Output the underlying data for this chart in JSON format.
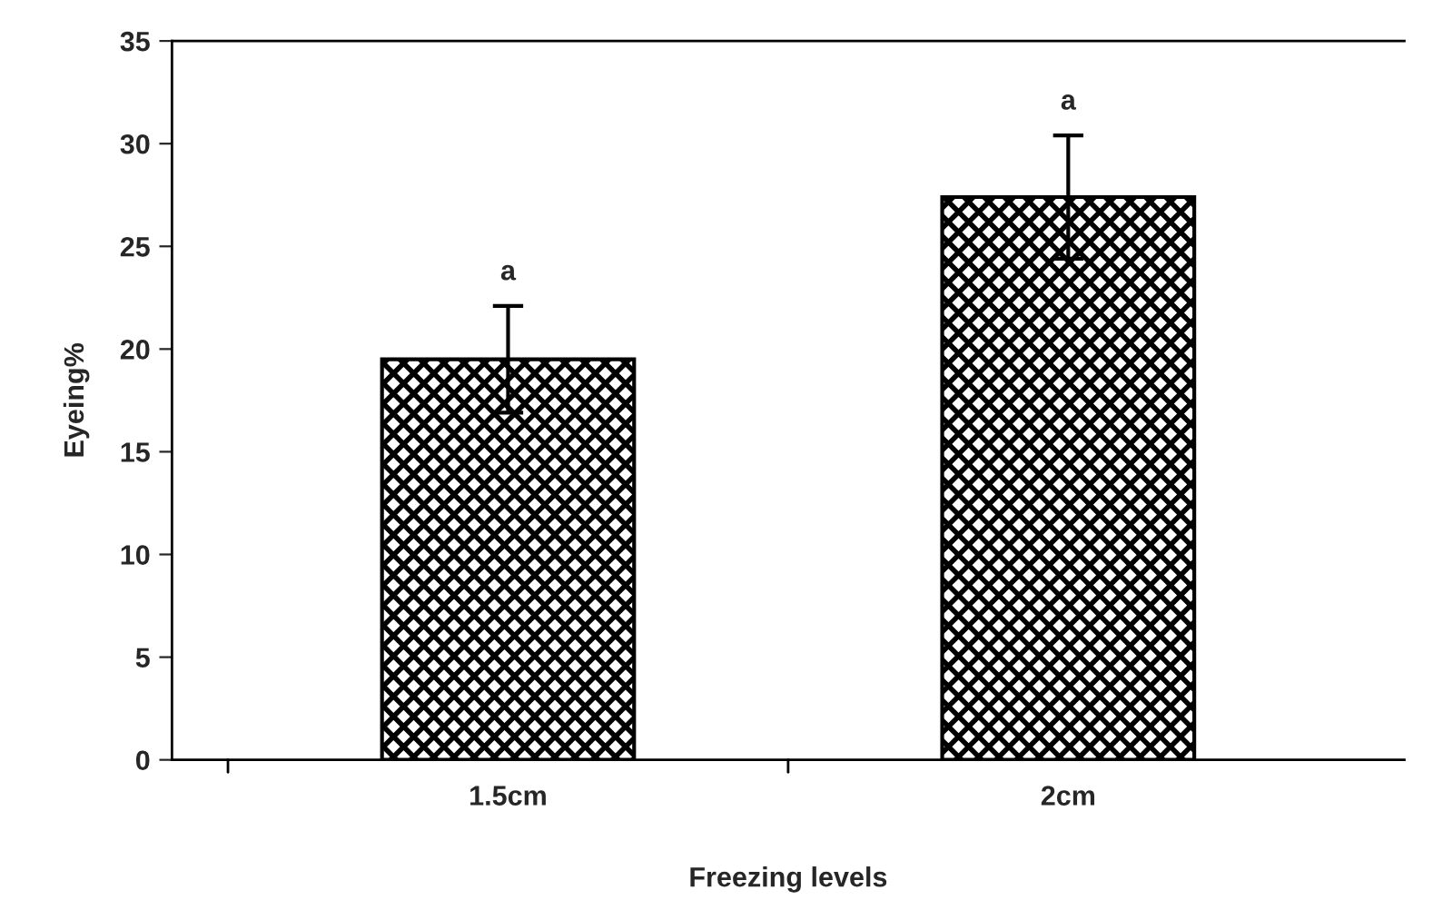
{
  "chart_data": {
    "type": "bar",
    "xlabel": "Freezing levels",
    "ylabel": "Eyeing%",
    "categories": [
      "1.5cm",
      "2cm"
    ],
    "values": [
      19.5,
      27.4
    ],
    "errors": [
      2.6,
      3.0
    ],
    "color": "#000000",
    "ylim": [
      0,
      35
    ],
    "yticks": [
      0,
      5,
      10,
      15,
      20,
      25,
      30,
      35
    ],
    "annotations": [
      "a",
      "a"
    ],
    "grid": false,
    "legend": false
  }
}
